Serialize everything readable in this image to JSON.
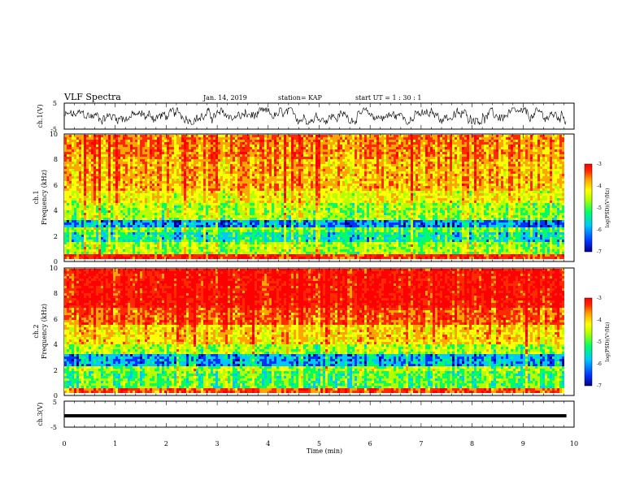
{
  "header": {
    "title": "VLF Spectra",
    "date": "Jan. 14, 2019",
    "station": "station= KAP",
    "start": "start  UT =   1 : 30 : 1"
  },
  "colors": {
    "spectrum_scale": [
      "#00008b",
      "#0033ff",
      "#00c8ff",
      "#00ff66",
      "#b4ff00",
      "#ffff00",
      "#ffa500",
      "#ff2a00",
      "#ff0000"
    ],
    "trace": "#000000",
    "background": "#ffffff"
  },
  "chart_data": [
    {
      "type": "line",
      "panel": "ch1-waveform",
      "ylabel": "ch.1(V)",
      "ylim": [
        -5,
        5
      ],
      "y_ticks": [
        "5",
        "-5"
      ],
      "description_level": "noisy waveform fluctuating between about -3 and 3 V over the whole record",
      "x_range_min": [
        0,
        9.85
      ]
    },
    {
      "type": "heatmap",
      "panel": "ch1-spectrogram",
      "ylabel": "ch.1\nFrequency (kHz)",
      "ylim": [
        0,
        10
      ],
      "y_ticks": [
        "0",
        "2",
        "4",
        "6",
        "8",
        "10"
      ],
      "x_range_min": [
        0,
        9.85
      ],
      "z_label": "log(PSD)(V²/Hz)",
      "z_range": [
        -7,
        -3
      ],
      "z_ticks": [
        "-3",
        "-4",
        "-5",
        "-6",
        "-7"
      ],
      "band_levels_khz": [
        {
          "band": [
            0,
            0.5
          ],
          "level": -3.6
        },
        {
          "band": [
            0.5,
            1.5
          ],
          "level": -5.0
        },
        {
          "band": [
            1.5,
            2.3
          ],
          "level": -5.6
        },
        {
          "band": [
            2.3,
            2.7
          ],
          "level": -5.2
        },
        {
          "band": [
            2.7,
            3.3
          ],
          "level": -6.1
        },
        {
          "band": [
            3.3,
            4.5
          ],
          "level": -5.0
        },
        {
          "band": [
            4.5,
            5.5
          ],
          "level": -4.6
        },
        {
          "band": [
            5.5,
            8.0
          ],
          "level": -4.2
        },
        {
          "band": [
            8.0,
            10
          ],
          "level": -4.0
        }
      ]
    },
    {
      "type": "heatmap",
      "panel": "ch2-spectrogram",
      "ylabel": "ch.2\nFrequency (kHz)",
      "ylim": [
        0,
        10
      ],
      "y_ticks": [
        "0",
        "2",
        "4",
        "6",
        "8",
        "10"
      ],
      "x_range_min": [
        0,
        9.85
      ],
      "z_label": "log(PSD)(V²/Hz)",
      "z_range": [
        -7,
        -3
      ],
      "z_ticks": [
        "-3",
        "-4",
        "-5",
        "-6",
        "-7"
      ],
      "band_levels_khz": [
        {
          "band": [
            0,
            0.5
          ],
          "level": -3.8
        },
        {
          "band": [
            0.5,
            1.8
          ],
          "level": -5.3
        },
        {
          "band": [
            1.8,
            2.2
          ],
          "level": -5.0
        },
        {
          "band": [
            2.2,
            3.2
          ],
          "level": -6.0
        },
        {
          "band": [
            3.2,
            4.0
          ],
          "level": -5.0
        },
        {
          "band": [
            4.0,
            5.5
          ],
          "level": -4.4
        },
        {
          "band": [
            5.5,
            7.0
          ],
          "level": -3.8
        },
        {
          "band": [
            7.0,
            10
          ],
          "level": -3.4
        }
      ]
    },
    {
      "type": "line",
      "panel": "ch3-waveform",
      "ylabel": "ch.3(V)",
      "ylim": [
        -5,
        5
      ],
      "y_ticks": [
        "5",
        "-5"
      ],
      "level_v": 0,
      "x_range_min": [
        0,
        9.85
      ]
    }
  ],
  "x_axis": {
    "label": "Time (min)",
    "ticks": [
      "0",
      "1",
      "2",
      "3",
      "4",
      "5",
      "6",
      "7",
      "8",
      "9",
      "10"
    ],
    "range": [
      0,
      10
    ]
  }
}
